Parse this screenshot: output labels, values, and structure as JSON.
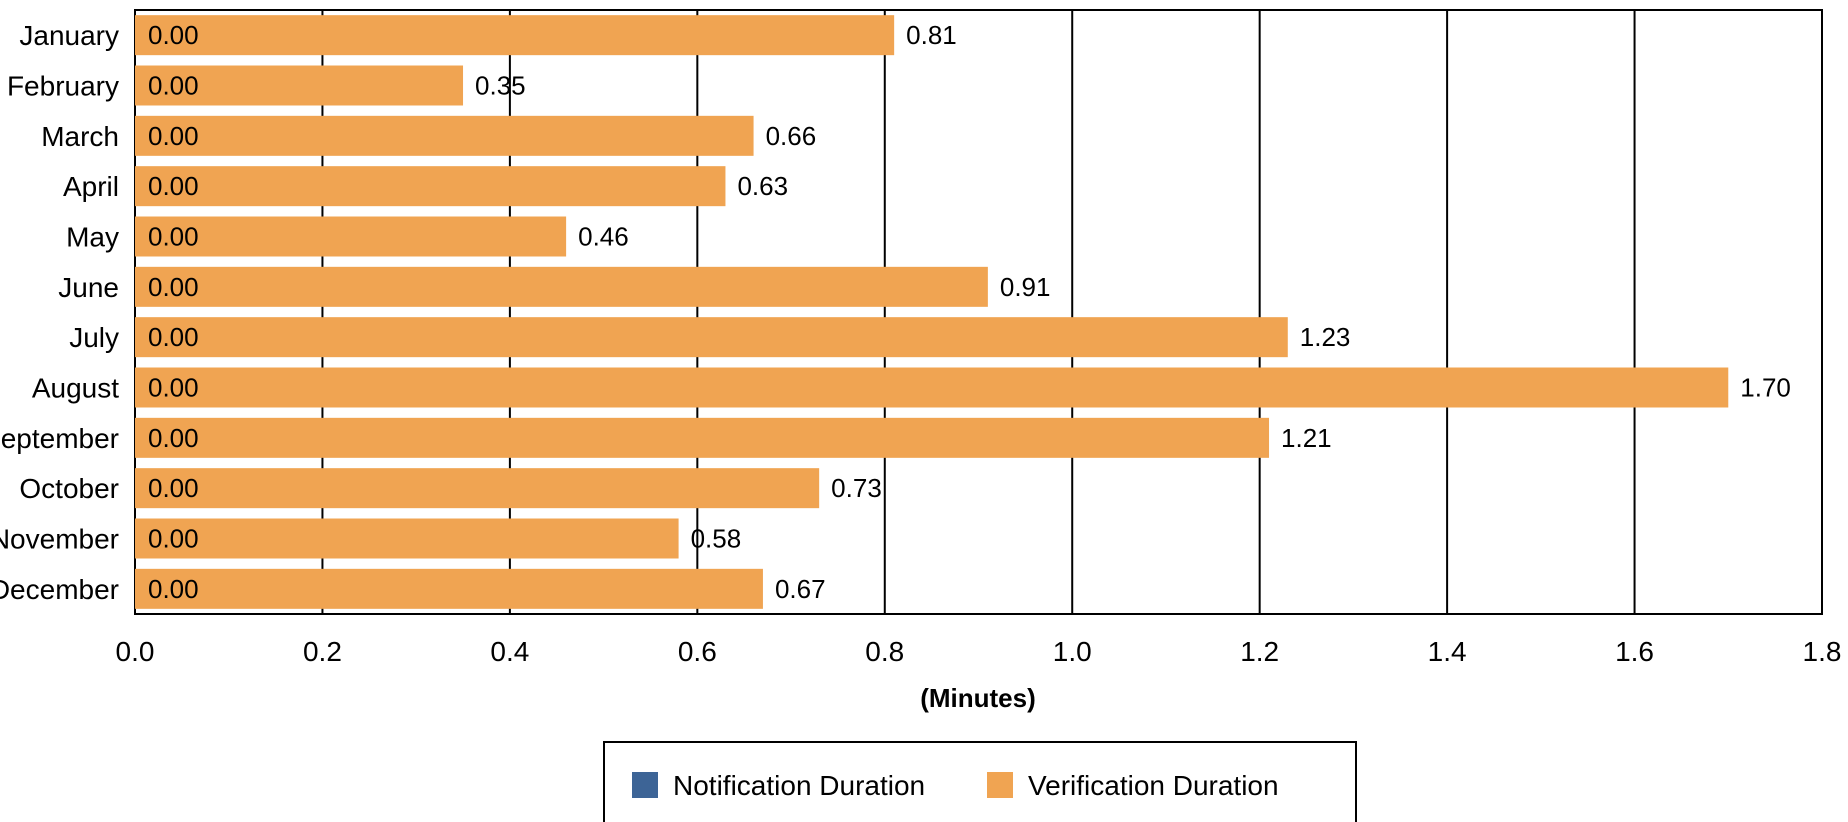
{
  "chart_data": {
    "type": "bar",
    "orientation": "horizontal",
    "stacked": true,
    "categories": [
      "January",
      "February",
      "March",
      "April",
      "May",
      "June",
      "July",
      "August",
      "September",
      "October",
      "November",
      "December"
    ],
    "series": [
      {
        "name": "Notification Duration",
        "color": "#3d6496",
        "values": [
          0,
          0,
          0,
          0,
          0,
          0,
          0,
          0,
          0,
          0,
          0,
          0
        ],
        "data_labels": [
          "0.00",
          "0.00",
          "0.00",
          "0.00",
          "0.00",
          "0.00",
          "0.00",
          "0.00",
          "0.00",
          "0.00",
          "0.00",
          "0.00"
        ]
      },
      {
        "name": "Verification Duration",
        "color": "#f0a452",
        "values": [
          0.81,
          0.35,
          0.66,
          0.63,
          0.46,
          0.91,
          1.23,
          1.7,
          1.21,
          0.73,
          0.58,
          0.67
        ],
        "data_labels": [
          "0.81",
          "0.35",
          "0.66",
          "0.63",
          "0.46",
          "0.91",
          "1.23",
          "1.70",
          "1.21",
          "0.73",
          "0.58",
          "0.67"
        ]
      }
    ],
    "xlabel": "(Minutes)",
    "xlim": [
      0,
      1.8
    ],
    "x_ticks": [
      "0.0",
      "0.2",
      "0.4",
      "0.6",
      "0.8",
      "1.0",
      "1.2",
      "1.4",
      "1.6",
      "1.8"
    ],
    "grid": "vertical",
    "legend_position": "bottom"
  }
}
